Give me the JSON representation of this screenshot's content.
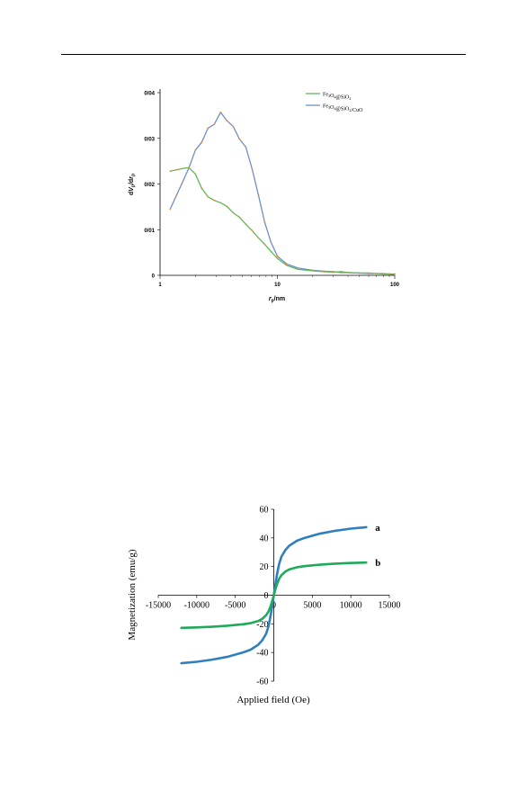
{
  "chart_data": [
    {
      "type": "line",
      "xlabel": "rp/nm",
      "ylabel": "dVp/drp",
      "xscale": "log",
      "xlim": [
        1,
        100
      ],
      "ylim": [
        0,
        0.04
      ],
      "xticks": [
        1,
        10,
        100
      ],
      "xtick_labels": [
        "1",
        "10",
        "100"
      ],
      "yticks": [
        0,
        0.01,
        0.02,
        0.03,
        0.04
      ],
      "ytick_labels": [
        "0",
        "0/01",
        "0/02",
        "0/03",
        "0/04"
      ],
      "legend_position": "top-right",
      "series": [
        {
          "name": "Fe3O4@SiO2",
          "color": "#5cb85c",
          "x": [
            1.22,
            1.38,
            1.56,
            1.76,
            2.0,
            2.26,
            2.56,
            2.9,
            3.28,
            3.71,
            4.2,
            4.76,
            5.38,
            6.09,
            6.89,
            7.8,
            8.83,
            10.0,
            12.0,
            15.0,
            20.0,
            25.0,
            30.0,
            35.0,
            40.0,
            50.0,
            60.0,
            70.0,
            80.0,
            90.0,
            100.0
          ],
          "y": [
            0.0228,
            0.0231,
            0.0234,
            0.0236,
            0.0222,
            0.0191,
            0.0172,
            0.0164,
            0.0159,
            0.0151,
            0.0137,
            0.0127,
            0.0112,
            0.0098,
            0.0082,
            0.0068,
            0.0052,
            0.0037,
            0.0022,
            0.0013,
            0.001,
            0.0008,
            0.0007,
            0.0008,
            0.0006,
            0.0005,
            0.0005,
            0.0004,
            0.0004,
            0.0003,
            0.0003
          ]
        },
        {
          "name": "Fe3O4@SiO2/CuO",
          "color": "#6f8fc4",
          "x": [
            1.22,
            1.38,
            1.56,
            1.76,
            2.0,
            2.26,
            2.56,
            2.9,
            3.28,
            3.71,
            4.2,
            4.76,
            5.38,
            6.09,
            6.89,
            7.8,
            8.83,
            10.0,
            12.0,
            15.0,
            20.0,
            25.0,
            30.0,
            35.0,
            40.0,
            50.0,
            60.0,
            70.0,
            80.0,
            90.0,
            100.0
          ],
          "y": [
            0.0145,
            0.0175,
            0.0205,
            0.0235,
            0.0274,
            0.0291,
            0.0322,
            0.0331,
            0.0357,
            0.0339,
            0.0326,
            0.0298,
            0.0281,
            0.0233,
            0.0176,
            0.0116,
            0.0072,
            0.0042,
            0.0025,
            0.0016,
            0.0011,
            0.0009,
            0.0008,
            0.0006,
            0.0006,
            0.0005,
            0.0004,
            0.0004,
            0.0003,
            0.0003,
            0.0002
          ]
        }
      ]
    },
    {
      "type": "line",
      "xlabel": "Applied field (Oe)",
      "ylabel": "Magnetization (emu/g)",
      "xlim": [
        -15000,
        15000
      ],
      "ylim": [
        -60,
        60
      ],
      "xticks": [
        -15000,
        -10000,
        -5000,
        0,
        5000,
        10000,
        15000
      ],
      "yticks": [
        -60,
        -40,
        -20,
        0,
        20,
        40,
        60
      ],
      "grid": false,
      "series": [
        {
          "name": "a",
          "color": "#2f7fbf",
          "x": [
            -12000,
            -10000,
            -8000,
            -6000,
            -4000,
            -3000,
            -2000,
            -1500,
            -1000,
            -700,
            -400,
            -200,
            0,
            200,
            400,
            700,
            1000,
            1500,
            2000,
            3000,
            4000,
            6000,
            8000,
            10000,
            12000
          ],
          "y": [
            -47.5,
            -46.5,
            -45.0,
            -43.0,
            -40.0,
            -38.0,
            -34.5,
            -31.5,
            -27.0,
            -22.0,
            -14.0,
            -7.0,
            0,
            7.0,
            14.0,
            22.0,
            27.0,
            31.5,
            34.5,
            38.0,
            40.0,
            43.0,
            45.0,
            46.5,
            47.5
          ]
        },
        {
          "name": "b",
          "color": "#1faa5a",
          "x": [
            -12000,
            -10000,
            -8000,
            -6000,
            -4000,
            -3000,
            -2000,
            -1500,
            -1000,
            -700,
            -400,
            -200,
            0,
            200,
            400,
            700,
            1000,
            1500,
            2000,
            3000,
            4000,
            6000,
            8000,
            10000,
            12000
          ],
          "y": [
            -22.8,
            -22.5,
            -22.0,
            -21.3,
            -20.3,
            -19.5,
            -18.0,
            -16.5,
            -14.0,
            -11.5,
            -7.5,
            -4.0,
            0,
            4.0,
            7.5,
            11.5,
            14.0,
            16.5,
            18.0,
            19.5,
            20.3,
            21.3,
            22.0,
            22.5,
            22.8
          ]
        }
      ]
    }
  ]
}
